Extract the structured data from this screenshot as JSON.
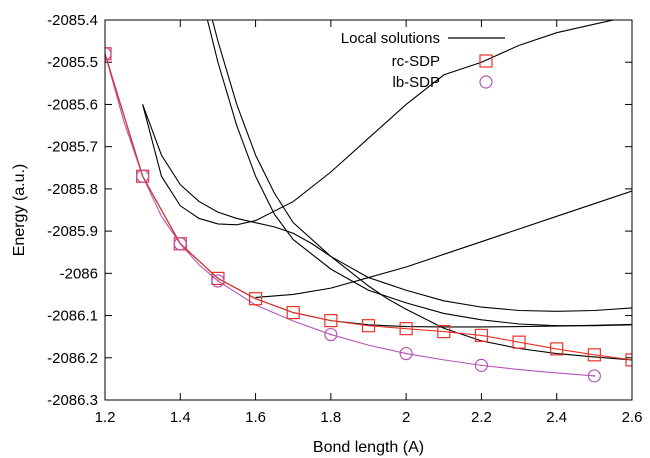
{
  "chart_data": {
    "type": "line",
    "xlabel": "Bond length (A)",
    "ylabel": "Energy (a.u.)",
    "xlim": [
      1.2,
      2.6
    ],
    "ylim": [
      -2086.3,
      -2085.4
    ],
    "x_ticks": [
      "1.2",
      "1.4",
      "1.6",
      "1.8",
      "2",
      "2.2",
      "2.4",
      "2.6"
    ],
    "y_ticks": [
      "-2085.4",
      "-2085.5",
      "-2085.6",
      "-2085.7",
      "-2085.8",
      "-2085.9",
      "-2086",
      "-2086.1",
      "-2086.2",
      "-2086.3"
    ],
    "legend_position": "top-right",
    "legend": [
      {
        "label": "Local solutions",
        "marker": "line",
        "color": "#000000"
      },
      {
        "label": "rc-SDP",
        "marker": "square",
        "color": "#e8322a"
      },
      {
        "label": "lb-SDP",
        "marker": "circle",
        "color": "#b455b6"
      }
    ],
    "local_solutions": [
      {
        "x": [
          1.2,
          1.3,
          1.4,
          1.5,
          1.6,
          1.7,
          1.8,
          1.9,
          2.0,
          2.1,
          2.2,
          2.3,
          2.4,
          2.5,
          2.6
        ],
        "y": [
          -2085.48,
          -2085.77,
          -2085.93,
          -2086.012,
          -2086.06,
          -2086.093,
          -2086.112,
          -2086.122,
          -2086.126,
          -2086.127,
          -2086.127,
          -2086.126,
          -2086.125,
          -2086.123,
          -2086.121
        ]
      },
      {
        "x": [
          1.4,
          1.45,
          1.5,
          1.55,
          1.6,
          1.65,
          1.7,
          1.8,
          1.9,
          2.0,
          2.1,
          2.2,
          2.3,
          2.4,
          2.5,
          2.6
        ],
        "y": [
          -2085.08,
          -2085.28,
          -2085.45,
          -2085.6,
          -2085.72,
          -2085.81,
          -2085.88,
          -2085.96,
          -2086.01,
          -2086.04,
          -2086.065,
          -2086.08,
          -2086.088,
          -2086.09,
          -2086.088,
          -2086.082
        ]
      },
      {
        "x": [
          1.4,
          1.45,
          1.5,
          1.55,
          1.6,
          1.65,
          1.7,
          1.8,
          1.9,
          2.0,
          2.1,
          2.2,
          2.3,
          2.4,
          2.5,
          2.6
        ],
        "y": [
          -2085.1,
          -2085.32,
          -2085.5,
          -2085.65,
          -2085.77,
          -2085.86,
          -2085.92,
          -2085.99,
          -2086.04,
          -2086.07,
          -2086.095,
          -2086.11,
          -2086.12,
          -2086.124,
          -2086.124,
          -2086.122
        ]
      },
      {
        "x": [
          1.3,
          1.35,
          1.4,
          1.45,
          1.5,
          1.55,
          1.6,
          1.65,
          1.7,
          1.75,
          1.8,
          1.85,
          1.9,
          1.95,
          2.0,
          2.1,
          2.2,
          2.3,
          2.4,
          2.5,
          2.6
        ],
        "y": [
          -2085.6,
          -2085.72,
          -2085.79,
          -2085.83,
          -2085.855,
          -2085.87,
          -2085.88,
          -2085.89,
          -2085.905,
          -2085.93,
          -2085.96,
          -2085.995,
          -2086.03,
          -2086.06,
          -2086.085,
          -2086.13,
          -2086.16,
          -2086.178,
          -2086.19,
          -2086.198,
          -2086.205
        ]
      },
      {
        "x": [
          1.3,
          1.35,
          1.4,
          1.45,
          1.5,
          1.55,
          1.6,
          1.7,
          1.8,
          1.9,
          2.0,
          2.1,
          2.2,
          2.3,
          2.4,
          2.5,
          2.6
        ],
        "y": [
          -2085.6,
          -2085.77,
          -2085.84,
          -2085.87,
          -2085.883,
          -2085.885,
          -2085.875,
          -2085.83,
          -2085.76,
          -2085.68,
          -2085.6,
          -2085.53,
          -2085.5,
          -2085.46,
          -2085.43,
          -2085.41,
          -2085.39
        ]
      },
      {
        "x": [
          1.6,
          1.7,
          1.8,
          1.9,
          2.0,
          2.1,
          2.2,
          2.3,
          2.4,
          2.5,
          2.6
        ],
        "y": [
          -2086.057,
          -2086.05,
          -2086.035,
          -2086.01,
          -2085.985,
          -2085.955,
          -2085.925,
          -2085.895,
          -2085.865,
          -2085.835,
          -2085.805
        ]
      }
    ],
    "rc_sdp": {
      "x": [
        1.2,
        1.3,
        1.4,
        1.5,
        1.6,
        1.7,
        1.8,
        1.9,
        2.0,
        2.1,
        2.2,
        2.3,
        2.4,
        2.5,
        2.6
      ],
      "y": [
        -2085.48,
        -2085.77,
        -2085.93,
        -2086.012,
        -2086.06,
        -2086.093,
        -2086.112,
        -2086.124,
        -2086.131,
        -2086.138,
        -2086.147,
        -2086.163,
        -2086.179,
        -2086.193,
        -2086.205
      ]
    },
    "lb_sdp": {
      "x": [
        1.2,
        1.3,
        1.4,
        1.5,
        1.8,
        2.0,
        2.2,
        2.5
      ],
      "y": [
        -2085.48,
        -2085.77,
        -2085.93,
        -2086.018,
        -2086.145,
        -2086.19,
        -2086.218,
        -2086.243
      ],
      "curve_x": [
        1.2,
        1.25,
        1.3,
        1.35,
        1.4,
        1.45,
        1.5,
        1.6,
        1.7,
        1.8,
        1.9,
        2.0,
        2.1,
        2.2,
        2.3,
        2.4,
        2.5
      ],
      "curve_y": [
        -2085.48,
        -2085.64,
        -2085.77,
        -2085.865,
        -2085.93,
        -2085.98,
        -2086.018,
        -2086.075,
        -2086.113,
        -2086.145,
        -2086.17,
        -2086.19,
        -2086.205,
        -2086.218,
        -2086.228,
        -2086.236,
        -2086.243
      ]
    }
  }
}
